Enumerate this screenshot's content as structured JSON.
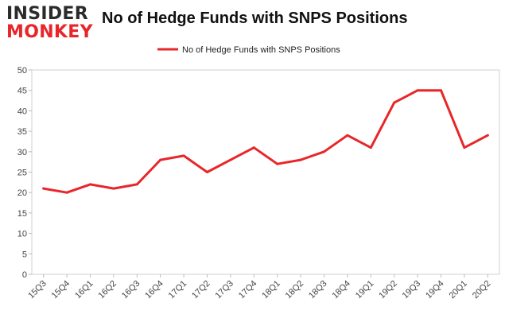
{
  "logo": {
    "line1": "INSIDER",
    "line2": "MONKEY"
  },
  "chart_data": {
    "type": "line",
    "title": "No of Hedge Funds with SNPS Positions",
    "categories": [
      "15Q3",
      "15Q4",
      "16Q1",
      "16Q2",
      "16Q3",
      "16Q4",
      "17Q1",
      "17Q2",
      "17Q3",
      "17Q4",
      "18Q1",
      "18Q2",
      "18Q3",
      "18Q4",
      "19Q1",
      "19Q2",
      "19Q3",
      "19Q4",
      "20Q1",
      "20Q2"
    ],
    "series": [
      {
        "name": "No of Hedge Funds with SNPS Positions",
        "color": "#e8262a",
        "values": [
          21,
          20,
          22,
          21,
          22,
          28,
          29,
          25,
          28,
          31,
          27,
          28,
          30,
          34,
          31,
          42,
          45,
          45,
          31,
          34
        ]
      }
    ],
    "ylim": [
      0,
      50
    ],
    "yticks": [
      0,
      5,
      10,
      15,
      20,
      25,
      30,
      35,
      40,
      45,
      50
    ],
    "grid": false,
    "legend_position": "top-center"
  }
}
